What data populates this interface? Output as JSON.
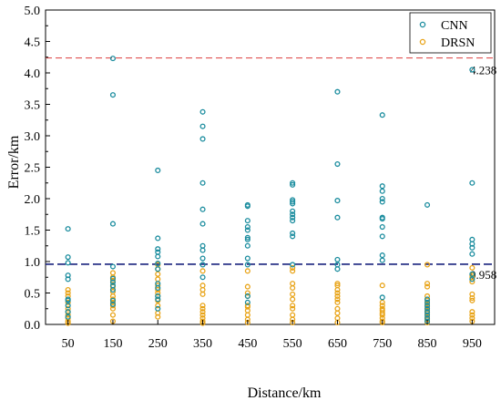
{
  "chart_data": {
    "type": "scatter",
    "xlabel": "Distance/km",
    "ylabel": "Error/km",
    "xlim": [
      0,
      1000
    ],
    "ylim": [
      0,
      5.0
    ],
    "x_ticks": [
      "50",
      "150",
      "250",
      "350",
      "450",
      "550",
      "650",
      "750",
      "850",
      "950"
    ],
    "y_ticks": [
      "0.0",
      "0.5",
      "1.0",
      "1.5",
      "2.0",
      "2.5",
      "3.0",
      "3.5",
      "4.0",
      "4.5",
      "5.0"
    ],
    "legend": {
      "position": "top-right"
    },
    "colors": {
      "CNN": "#1a8c9e",
      "DRSN": "#e8a317",
      "upper_line": "#e05252",
      "lower_line": "#1a237e"
    },
    "reference_lines": [
      {
        "label": "4.238",
        "y": 4.238,
        "color": "red",
        "style": "dashed"
      },
      {
        "label": "0.958",
        "y": 0.958,
        "color": "darkblue",
        "style": "dashed"
      }
    ],
    "series": [
      {
        "name": "CNN",
        "points": [
          [
            50,
            1.52
          ],
          [
            50,
            1.07
          ],
          [
            50,
            0.98
          ],
          [
            50,
            0.78
          ],
          [
            50,
            0.72
          ],
          [
            50,
            0.4
          ],
          [
            50,
            0.38
          ],
          [
            50,
            0.3
          ],
          [
            50,
            0.2
          ],
          [
            50,
            0.12
          ],
          [
            150,
            4.23
          ],
          [
            150,
            3.65
          ],
          [
            150,
            1.6
          ],
          [
            150,
            0.92
          ],
          [
            150,
            0.73
          ],
          [
            150,
            0.67
          ],
          [
            150,
            0.62
          ],
          [
            150,
            0.55
          ],
          [
            150,
            0.38
          ],
          [
            150,
            0.32
          ],
          [
            250,
            2.45
          ],
          [
            250,
            1.37
          ],
          [
            250,
            1.2
          ],
          [
            250,
            1.15
          ],
          [
            250,
            1.08
          ],
          [
            250,
            0.97
          ],
          [
            250,
            0.88
          ],
          [
            250,
            0.65
          ],
          [
            250,
            0.58
          ],
          [
            250,
            0.45
          ],
          [
            250,
            0.4
          ],
          [
            250,
            0.25
          ],
          [
            350,
            3.38
          ],
          [
            350,
            3.15
          ],
          [
            350,
            2.95
          ],
          [
            350,
            2.25
          ],
          [
            350,
            1.83
          ],
          [
            350,
            1.6
          ],
          [
            350,
            1.25
          ],
          [
            350,
            1.18
          ],
          [
            350,
            1.05
          ],
          [
            350,
            0.95
          ],
          [
            350,
            0.75
          ],
          [
            450,
            1.9
          ],
          [
            450,
            1.88
          ],
          [
            450,
            1.65
          ],
          [
            450,
            1.55
          ],
          [
            450,
            1.5
          ],
          [
            450,
            1.38
          ],
          [
            450,
            1.35
          ],
          [
            450,
            1.25
          ],
          [
            450,
            1.05
          ],
          [
            450,
            0.95
          ],
          [
            450,
            0.45
          ],
          [
            450,
            0.35
          ],
          [
            550,
            2.25
          ],
          [
            550,
            2.22
          ],
          [
            550,
            1.98
          ],
          [
            550,
            1.95
          ],
          [
            550,
            1.92
          ],
          [
            550,
            1.8
          ],
          [
            550,
            1.75
          ],
          [
            550,
            1.7
          ],
          [
            550,
            1.65
          ],
          [
            550,
            1.45
          ],
          [
            550,
            1.4
          ],
          [
            550,
            0.95
          ],
          [
            650,
            3.7
          ],
          [
            650,
            2.55
          ],
          [
            650,
            1.97
          ],
          [
            650,
            1.7
          ],
          [
            650,
            1.03
          ],
          [
            650,
            0.95
          ],
          [
            650,
            0.88
          ],
          [
            750,
            3.33
          ],
          [
            750,
            2.2
          ],
          [
            750,
            2.12
          ],
          [
            750,
            2.0
          ],
          [
            750,
            1.95
          ],
          [
            750,
            1.7
          ],
          [
            750,
            1.68
          ],
          [
            750,
            1.55
          ],
          [
            750,
            1.4
          ],
          [
            750,
            1.1
          ],
          [
            750,
            1.02
          ],
          [
            750,
            0.43
          ],
          [
            850,
            1.9
          ],
          [
            850,
            0.4
          ],
          [
            850,
            0.35
          ],
          [
            850,
            0.3
          ],
          [
            850,
            0.25
          ],
          [
            850,
            0.2
          ],
          [
            850,
            0.15
          ],
          [
            850,
            0.1
          ],
          [
            850,
            0.05
          ],
          [
            950,
            4.05
          ],
          [
            950,
            2.25
          ],
          [
            950,
            1.35
          ],
          [
            950,
            1.28
          ],
          [
            950,
            1.22
          ],
          [
            950,
            1.12
          ],
          [
            950,
            0.8
          ],
          [
            950,
            0.72
          ]
        ]
      },
      {
        "name": "DRSN",
        "points": [
          [
            50,
            0.55
          ],
          [
            50,
            0.5
          ],
          [
            50,
            0.45
          ],
          [
            50,
            0.35
          ],
          [
            50,
            0.25
          ],
          [
            50,
            0.2
          ],
          [
            50,
            0.15
          ],
          [
            50,
            0.1
          ],
          [
            50,
            0.05
          ],
          [
            50,
            0.02
          ],
          [
            150,
            0.82
          ],
          [
            150,
            0.75
          ],
          [
            150,
            0.7
          ],
          [
            150,
            0.6
          ],
          [
            150,
            0.52
          ],
          [
            150,
            0.45
          ],
          [
            150,
            0.4
          ],
          [
            150,
            0.35
          ],
          [
            150,
            0.3
          ],
          [
            150,
            0.25
          ],
          [
            150,
            0.15
          ],
          [
            150,
            0.05
          ],
          [
            250,
            0.95
          ],
          [
            250,
            0.88
          ],
          [
            250,
            0.8
          ],
          [
            250,
            0.72
          ],
          [
            250,
            0.62
          ],
          [
            250,
            0.55
          ],
          [
            250,
            0.5
          ],
          [
            250,
            0.45
          ],
          [
            250,
            0.38
          ],
          [
            250,
            0.3
          ],
          [
            250,
            0.18
          ],
          [
            250,
            0.12
          ],
          [
            350,
            0.85
          ],
          [
            350,
            0.62
          ],
          [
            350,
            0.55
          ],
          [
            350,
            0.48
          ],
          [
            350,
            0.3
          ],
          [
            350,
            0.25
          ],
          [
            350,
            0.2
          ],
          [
            350,
            0.15
          ],
          [
            350,
            0.1
          ],
          [
            350,
            0.05
          ],
          [
            350,
            0.02
          ],
          [
            450,
            0.85
          ],
          [
            450,
            0.6
          ],
          [
            450,
            0.5
          ],
          [
            450,
            0.45
          ],
          [
            450,
            0.3
          ],
          [
            450,
            0.28
          ],
          [
            450,
            0.22
          ],
          [
            450,
            0.15
          ],
          [
            450,
            0.08
          ],
          [
            450,
            0.03
          ],
          [
            550,
            0.9
          ],
          [
            550,
            0.85
          ],
          [
            550,
            0.65
          ],
          [
            550,
            0.58
          ],
          [
            550,
            0.48
          ],
          [
            550,
            0.4
          ],
          [
            550,
            0.3
          ],
          [
            550,
            0.25
          ],
          [
            550,
            0.15
          ],
          [
            550,
            0.08
          ],
          [
            550,
            0.03
          ],
          [
            650,
            0.65
          ],
          [
            650,
            0.62
          ],
          [
            650,
            0.55
          ],
          [
            650,
            0.5
          ],
          [
            650,
            0.45
          ],
          [
            650,
            0.4
          ],
          [
            650,
            0.35
          ],
          [
            650,
            0.25
          ],
          [
            650,
            0.18
          ],
          [
            650,
            0.1
          ],
          [
            650,
            0.03
          ],
          [
            750,
            0.62
          ],
          [
            750,
            0.35
          ],
          [
            750,
            0.3
          ],
          [
            750,
            0.25
          ],
          [
            750,
            0.22
          ],
          [
            750,
            0.18
          ],
          [
            750,
            0.15
          ],
          [
            750,
            0.1
          ],
          [
            750,
            0.05
          ],
          [
            750,
            0.03
          ],
          [
            850,
            0.95
          ],
          [
            850,
            0.65
          ],
          [
            850,
            0.6
          ],
          [
            850,
            0.45
          ],
          [
            850,
            0.38
          ],
          [
            850,
            0.33
          ],
          [
            850,
            0.28
          ],
          [
            850,
            0.22
          ],
          [
            850,
            0.18
          ],
          [
            850,
            0.12
          ],
          [
            850,
            0.08
          ],
          [
            850,
            0.03
          ],
          [
            950,
            0.9
          ],
          [
            950,
            0.78
          ],
          [
            950,
            0.75
          ],
          [
            950,
            0.68
          ],
          [
            950,
            0.48
          ],
          [
            950,
            0.42
          ],
          [
            950,
            0.38
          ],
          [
            950,
            0.2
          ],
          [
            950,
            0.15
          ],
          [
            950,
            0.1
          ],
          [
            950,
            0.05
          ]
        ]
      }
    ]
  }
}
